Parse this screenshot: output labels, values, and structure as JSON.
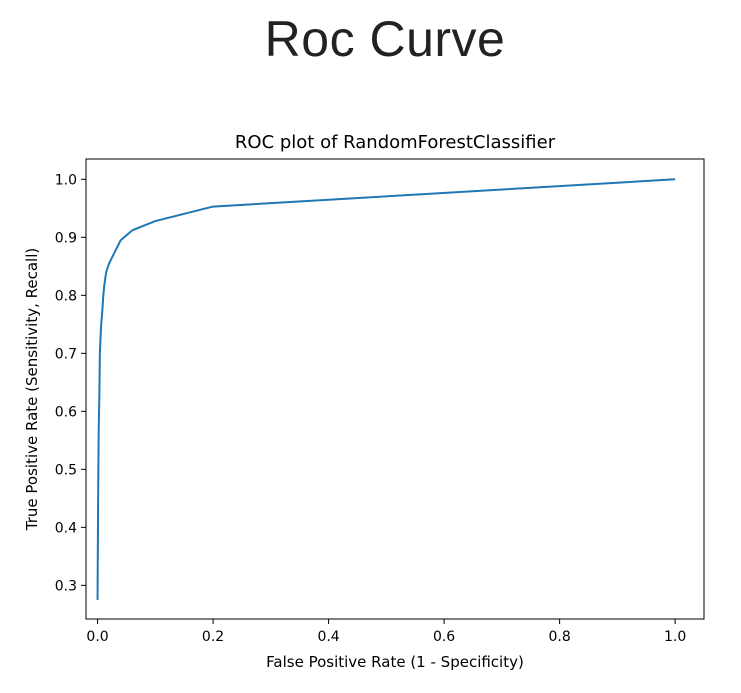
{
  "page": {
    "title": "Roc Curve"
  },
  "chart_data": {
    "type": "line",
    "title": "ROC plot of RandomForestClassifier",
    "xlabel": "False Positive Rate (1 - Specificity)",
    "ylabel": "True Positive Rate (Sensitivity, Recall)",
    "xlim": [
      -0.02,
      1.05
    ],
    "ylim": [
      0.242,
      1.035
    ],
    "xticks": [
      0.0,
      0.2,
      0.4,
      0.6,
      0.8,
      1.0
    ],
    "xtick_labels": [
      "0.0",
      "0.2",
      "0.4",
      "0.6",
      "0.8",
      "1.0"
    ],
    "yticks": [
      0.3,
      0.4,
      0.5,
      0.6,
      0.7,
      0.8,
      0.9,
      1.0
    ],
    "ytick_labels": [
      "0.3",
      "0.4",
      "0.5",
      "0.6",
      "0.7",
      "0.8",
      "0.9",
      "1.0"
    ],
    "grid": false,
    "series": [
      {
        "color": "#1f77b4",
        "x": [
          0.0,
          0.001,
          0.002,
          0.003,
          0.004,
          0.006,
          0.008,
          0.01,
          0.012,
          0.015,
          0.02,
          0.03,
          0.04,
          0.06,
          0.1,
          0.2,
          1.0
        ],
        "y": [
          0.275,
          0.45,
          0.57,
          0.62,
          0.7,
          0.745,
          0.77,
          0.8,
          0.82,
          0.84,
          0.855,
          0.875,
          0.895,
          0.912,
          0.928,
          0.953,
          1.0
        ]
      }
    ]
  }
}
